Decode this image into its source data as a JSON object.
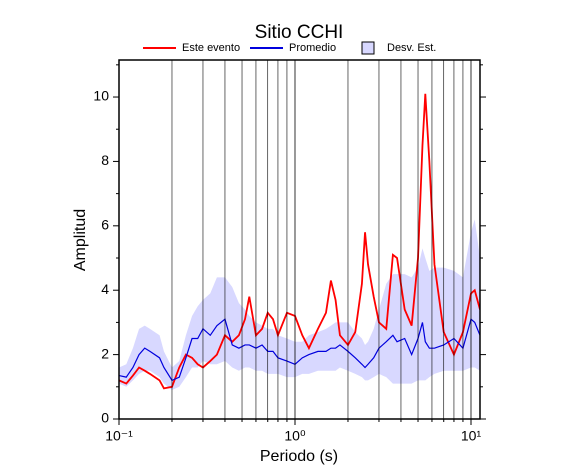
{
  "chart_data": {
    "type": "line",
    "title": "Sitio CCHI",
    "xlabel": "Periodo (s)",
    "ylabel": "Amplitud",
    "xscale": "log",
    "xlim": [
      0.1,
      11.25
    ],
    "ylim": [
      0,
      11.15
    ],
    "xticks": [
      {
        "value": 0.1,
        "label": "10⁻¹"
      },
      {
        "value": 1,
        "label": "10⁰"
      },
      {
        "value": 10,
        "label": "10¹"
      }
    ],
    "xminor": [
      0.2,
      0.3,
      0.4,
      0.5,
      0.6,
      0.7,
      0.8,
      0.9,
      2,
      3,
      4,
      5,
      6,
      7,
      8,
      9
    ],
    "yticks": [
      0,
      2,
      4,
      6,
      8,
      10
    ],
    "yminor": [
      1,
      3,
      5,
      7,
      9,
      11
    ],
    "grid": true,
    "legend": "top",
    "x": [
      0.1,
      0.11,
      0.12,
      0.13,
      0.14,
      0.15,
      0.17,
      0.18,
      0.2,
      0.22,
      0.24,
      0.26,
      0.28,
      0.3,
      0.33,
      0.36,
      0.4,
      0.44,
      0.48,
      0.52,
      0.55,
      0.6,
      0.65,
      0.7,
      0.75,
      0.8,
      0.9,
      1.0,
      1.1,
      1.2,
      1.35,
      1.5,
      1.6,
      1.7,
      1.8,
      2.0,
      2.2,
      2.4,
      2.5,
      2.6,
      2.8,
      3.0,
      3.3,
      3.6,
      3.8,
      4.2,
      4.6,
      5.0,
      5.3,
      5.5,
      5.8,
      6.2,
      7.0,
      8.0,
      9.0,
      10.0,
      10.5,
      11.25
    ],
    "series": [
      {
        "name": "Este evento",
        "color": "#ff0000",
        "values": [
          1.2,
          1.1,
          1.35,
          1.6,
          1.5,
          1.4,
          1.2,
          0.95,
          1.0,
          1.6,
          2.0,
          1.9,
          1.7,
          1.6,
          1.8,
          2.0,
          2.6,
          2.4,
          2.6,
          3.1,
          3.8,
          2.6,
          2.8,
          3.3,
          3.1,
          2.6,
          3.3,
          3.2,
          2.6,
          2.2,
          2.8,
          3.3,
          4.3,
          3.7,
          2.6,
          2.3,
          2.7,
          4.2,
          5.8,
          4.8,
          3.8,
          3.0,
          2.8,
          5.1,
          5.0,
          3.4,
          2.9,
          5.0,
          8.5,
          10.1,
          8.0,
          4.8,
          2.7,
          2.0,
          2.7,
          3.9,
          4.0,
          3.4
        ]
      },
      {
        "name": "Promedio",
        "color": "#0000dd",
        "values": [
          1.35,
          1.3,
          1.6,
          2.0,
          2.2,
          2.1,
          1.9,
          1.6,
          1.2,
          1.3,
          1.9,
          2.5,
          2.5,
          2.8,
          2.6,
          2.9,
          3.1,
          2.3,
          2.2,
          2.3,
          2.3,
          2.2,
          2.3,
          2.1,
          2.1,
          1.9,
          1.8,
          1.7,
          1.9,
          2.0,
          2.1,
          2.1,
          2.2,
          2.2,
          2.3,
          2.1,
          1.9,
          1.7,
          1.6,
          1.7,
          1.9,
          2.2,
          2.4,
          2.6,
          2.4,
          2.5,
          2.0,
          2.5,
          3.0,
          2.4,
          2.2,
          2.2,
          2.3,
          2.5,
          2.2,
          3.1,
          3.0,
          2.6
        ]
      }
    ],
    "band": {
      "name": "Desv. Est.",
      "color": "#d8d8ff",
      "lower": [
        1.1,
        1.0,
        1.2,
        1.4,
        1.5,
        1.5,
        1.3,
        1.1,
        0.9,
        1.0,
        1.3,
        1.6,
        1.6,
        1.8,
        1.7,
        1.7,
        1.8,
        1.6,
        1.5,
        1.6,
        1.6,
        1.5,
        1.5,
        1.4,
        1.4,
        1.4,
        1.3,
        1.3,
        1.4,
        1.4,
        1.5,
        1.5,
        1.5,
        1.5,
        1.6,
        1.5,
        1.4,
        1.3,
        1.2,
        1.2,
        1.3,
        1.4,
        1.3,
        1.1,
        1.1,
        1.1,
        1.1,
        1.2,
        1.2,
        1.2,
        1.3,
        1.4,
        1.5,
        1.5,
        1.5,
        1.6,
        1.6,
        1.5
      ],
      "upper": [
        1.6,
        1.7,
        2.2,
        2.8,
        2.9,
        2.8,
        2.6,
        2.1,
        1.6,
        1.8,
        2.6,
        3.2,
        3.5,
        3.7,
        3.9,
        4.4,
        4.4,
        4.1,
        3.6,
        3.4,
        3.2,
        3.0,
        2.9,
        2.8,
        2.8,
        2.6,
        2.5,
        2.4,
        2.4,
        2.6,
        2.7,
        2.8,
        2.9,
        3.0,
        3.0,
        3.0,
        2.7,
        2.5,
        2.3,
        2.4,
        2.8,
        3.4,
        4.2,
        4.5,
        4.5,
        4.5,
        4.4,
        4.7,
        5.3,
        5.0,
        4.6,
        4.7,
        4.7,
        4.6,
        4.4,
        5.8,
        6.2,
        5.0
      ]
    }
  }
}
